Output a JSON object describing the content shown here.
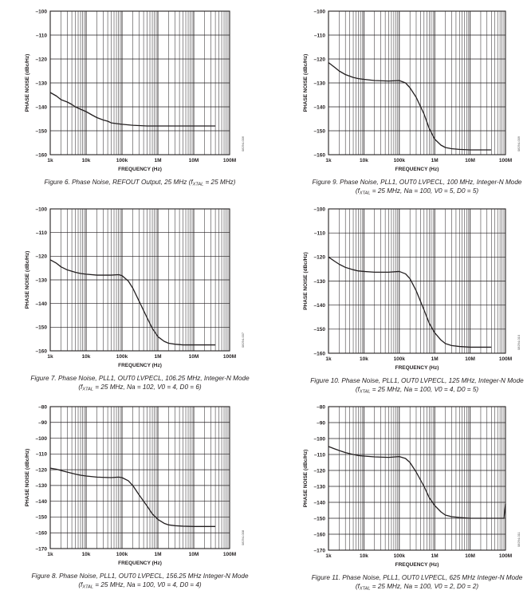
{
  "style": {
    "line_color": "#231f20",
    "grid_color": "#231f20"
  },
  "chart_data": [
    {
      "type": "line",
      "xlabel": "FREQUENCY (Hz)",
      "ylabel": "PHASE NOISE (dBc/Hz)",
      "log_x": true,
      "xlim": [
        1000,
        100000000
      ],
      "ylim": [
        -160,
        -100
      ],
      "xticks": [
        "1k",
        "10k",
        "100k",
        "1M",
        "10M",
        "100M"
      ],
      "yticks": [
        "–100",
        "–110",
        "–120",
        "–130",
        "–140",
        "–150",
        "–160"
      ],
      "grid": true,
      "side_label": "08294-006",
      "caption": {
        "line1_a": "Figure 6. Phase Noise, REFOUT Output, 25 MHz (f",
        "line1_sub": "XTAL",
        "line1_b": " = 25 MHz)",
        "line2_a": "",
        "line2_sub": "",
        "line2_b": ""
      },
      "x": [
        1000,
        1500,
        2000,
        3000,
        4000,
        5000,
        7000,
        10000,
        15000,
        20000,
        30000,
        40000,
        50000,
        70000,
        100000,
        200000,
        500000,
        1000000,
        3000000,
        10000000,
        40000000
      ],
      "y": [
        -134,
        -135.5,
        -137,
        -138,
        -139,
        -140,
        -141,
        -142,
        -143.5,
        -144.5,
        -145.5,
        -146,
        -146.7,
        -147,
        -147.3,
        -147.7,
        -148,
        -148,
        -148,
        -148,
        -148
      ]
    },
    {
      "type": "line",
      "xlabel": "FREQUENCY (Hz)",
      "ylabel": "PHASE NOISE (dBc/Hz)",
      "log_x": true,
      "xlim": [
        1000,
        100000000
      ],
      "ylim": [
        -160,
        -100
      ],
      "xticks": [
        "1k",
        "10k",
        "100k",
        "1M",
        "10M",
        "100M"
      ],
      "yticks": [
        "–100",
        "–110",
        "–120",
        "–130",
        "–140",
        "–150",
        "–160"
      ],
      "grid": true,
      "side_label": "08294-009",
      "caption": {
        "line1_a": "Figure 9. Phase Noise, PLL1, OUT0 LVPECL, 100 MHz, Integer-N Mode",
        "line1_sub": "",
        "line1_b": "",
        "line2_a": "(f",
        "line2_sub": "XTAL",
        "line2_b": " = 25 MHz, Na = 100, V0 = 5, D0 = 5)"
      },
      "x": [
        1000,
        1500,
        2000,
        3000,
        5000,
        7000,
        10000,
        20000,
        50000,
        100000,
        150000,
        200000,
        300000,
        500000,
        700000,
        1000000,
        1500000,
        2000000,
        3000000,
        5000000,
        10000000,
        40000000
      ],
      "y": [
        -121.5,
        -123.5,
        -125,
        -126.5,
        -127.7,
        -128.2,
        -128.5,
        -129,
        -129.2,
        -129,
        -130,
        -132,
        -136,
        -143,
        -149,
        -153.5,
        -156,
        -157,
        -157.5,
        -157.8,
        -158,
        -158
      ]
    },
    {
      "type": "line",
      "xlabel": "FREQUENCY (Hz)",
      "ylabel": "PHASE NOISE (dBc/Hz)",
      "log_x": true,
      "xlim": [
        1000,
        100000000
      ],
      "ylim": [
        -160,
        -100
      ],
      "xticks": [
        "1k",
        "10k",
        "100k",
        "1M",
        "10M",
        "100M"
      ],
      "yticks": [
        "–100",
        "–110",
        "–120",
        "–130",
        "–140",
        "–150",
        "–160"
      ],
      "grid": true,
      "side_label": "08294-007",
      "caption": {
        "line1_a": "Figure 7. Phase Noise, PLL1, OUT0 LVPECL, 106.25 MHz, Integer-N Mode",
        "line1_sub": "",
        "line1_b": "",
        "line2_a": "(f",
        "line2_sub": "XTAL",
        "line2_b": " = 25 MHz, Na = 102, V0 = 4, D0 = 6)"
      },
      "x": [
        1000,
        1500,
        2000,
        3000,
        5000,
        7000,
        10000,
        20000,
        50000,
        80000,
        100000,
        150000,
        200000,
        300000,
        500000,
        700000,
        1000000,
        1500000,
        2000000,
        3000000,
        5000000,
        10000000,
        40000000
      ],
      "y": [
        -121.5,
        -123,
        -124.5,
        -125.8,
        -126.8,
        -127.3,
        -127.6,
        -128,
        -128,
        -127.8,
        -128.2,
        -130.5,
        -133.5,
        -139,
        -146,
        -150.5,
        -154,
        -156,
        -156.8,
        -157.2,
        -157.5,
        -157.5,
        -157.5
      ]
    },
    {
      "type": "line",
      "xlabel": "FREQUENCY (Hz)",
      "ylabel": "PHASE NOISE (dBc/Hz)",
      "log_x": true,
      "xlim": [
        1000,
        100000000
      ],
      "ylim": [
        -160,
        -100
      ],
      "xticks": [
        "1k",
        "10k",
        "100k",
        "1M",
        "10M",
        "100M"
      ],
      "yticks": [
        "–100",
        "–110",
        "–120",
        "–130",
        "–140",
        "–150",
        "–160"
      ],
      "grid": true,
      "side_label": "08294-010",
      "caption": {
        "line1_a": "Figure 10. Phase Noise, PLL1, OUT0 LVPECL, 125 MHz, Integer-N Mode",
        "line1_sub": "",
        "line1_b": "",
        "line2_a": "(f",
        "line2_sub": "XTAL",
        "line2_b": " = 25 MHz, Na = 100, V0 = 4, D0 = 5)"
      },
      "x": [
        1000,
        1500,
        2000,
        3000,
        5000,
        7000,
        10000,
        20000,
        50000,
        100000,
        150000,
        200000,
        300000,
        500000,
        700000,
        1000000,
        1500000,
        2000000,
        3000000,
        5000000,
        10000000,
        40000000
      ],
      "y": [
        -120,
        -121.8,
        -123,
        -124.3,
        -125.3,
        -125.8,
        -126,
        -126.3,
        -126.3,
        -126,
        -127,
        -129,
        -134,
        -142,
        -147.5,
        -151.5,
        -154.5,
        -156,
        -156.8,
        -157.2,
        -157.5,
        -157.5
      ]
    },
    {
      "type": "line",
      "xlabel": "FREQUENCY (Hz)",
      "ylabel": "PHASE NOISE (dBc/Hz)",
      "log_x": true,
      "xlim": [
        1000,
        100000000
      ],
      "ylim": [
        -170,
        -80
      ],
      "xticks": [
        "1k",
        "10k",
        "100k",
        "1M",
        "10M",
        "100M"
      ],
      "yticks": [
        "–80",
        "–90",
        "–100",
        "–110",
        "–120",
        "–130",
        "–140",
        "–150",
        "–160",
        "–170"
      ],
      "grid": true,
      "side_label": "08294-008",
      "caption": {
        "line1_a": "Figure 8. Phase Noise, PLL1, OUT0 LVPECL, 156.25 MHz Integer-N Mode",
        "line1_sub": "",
        "line1_b": "",
        "line2_a": "(f",
        "line2_sub": "XTAL",
        "line2_b": " = 25 MHz, Na = 100, V0 = 4, D0 = 4)"
      },
      "x": [
        1000,
        1500,
        2000,
        3000,
        5000,
        7000,
        10000,
        20000,
        50000,
        80000,
        100000,
        150000,
        200000,
        300000,
        500000,
        700000,
        1000000,
        1500000,
        2000000,
        3000000,
        5000000,
        10000000,
        40000000
      ],
      "y": [
        -119,
        -119.7,
        -120.5,
        -121.5,
        -122.8,
        -123.5,
        -124,
        -124.7,
        -125,
        -124.7,
        -125,
        -127,
        -130,
        -136,
        -143,
        -148,
        -151.5,
        -154,
        -155,
        -155.5,
        -155.8,
        -156,
        -156
      ]
    },
    {
      "type": "line",
      "xlabel": "FREQUENCY (Hz)",
      "ylabel": "PHASE NOISE (dBc/Hz)",
      "log_x": true,
      "xlim": [
        1000,
        100000000
      ],
      "ylim": [
        -170,
        -80
      ],
      "xticks": [
        "1k",
        "10k",
        "100k",
        "1M",
        "10M",
        "100M"
      ],
      "yticks": [
        "–80",
        "–90",
        "–100",
        "–110",
        "–120",
        "–130",
        "–140",
        "–150",
        "–160",
        "–170"
      ],
      "grid": true,
      "side_label": "08294-011",
      "caption": {
        "line1_a": "Figure 11. Phase Noise, PLL1, OUT0 LVPECL, 625 MHz Integer-N Mode",
        "line1_sub": "",
        "line1_b": "",
        "line2_a": "(f",
        "line2_sub": "XTAL",
        "line2_b": " = 25 MHz, Na = 100, V0 = 2, D0 = 2)"
      },
      "x": [
        1000,
        1500,
        2000,
        3000,
        5000,
        7000,
        10000,
        20000,
        50000,
        100000,
        150000,
        200000,
        300000,
        500000,
        700000,
        1000000,
        1500000,
        2000000,
        3000000,
        5000000,
        10000000,
        40000000,
        90000000,
        100000000
      ],
      "y": [
        -105,
        -106.5,
        -107.5,
        -108.8,
        -110,
        -110.7,
        -111,
        -111.5,
        -111.8,
        -111.3,
        -112.5,
        -115,
        -121,
        -130,
        -137,
        -142,
        -146,
        -148,
        -149,
        -149.5,
        -150,
        -150,
        -150,
        -141
      ]
    }
  ]
}
